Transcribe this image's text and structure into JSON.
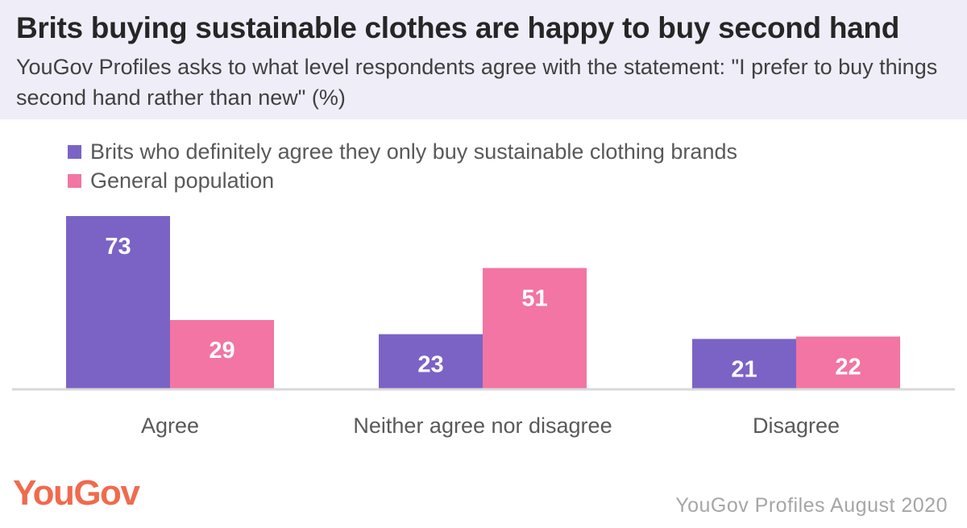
{
  "header": {
    "title": "Brits buying sustainable clothes are happy to buy second hand",
    "subtitle": "YouGov Profiles asks to what level respondents agree with the statement: \"I prefer to buy things second hand rather than new\" (%)"
  },
  "colors": {
    "header_bg": "#efedf7",
    "series_1": "#7b63c6",
    "series_2": "#f275a3",
    "logo": "#ef6b4d",
    "axis": "#d9d9d9"
  },
  "chart_data": {
    "type": "bar",
    "categories": [
      "Agree",
      "Neither agree nor disagree",
      "Disagree"
    ],
    "series": [
      {
        "name": "Brits who definitely agree they only buy sustainable clothing brands",
        "values": [
          73,
          23,
          21
        ]
      },
      {
        "name": "General population",
        "values": [
          29,
          51,
          22
        ]
      }
    ],
    "ylim": [
      0,
      73
    ],
    "grid": false,
    "legend_position": "top-left"
  },
  "footer": {
    "logo_text": "YouGov",
    "source": "YouGov Profiles August 2020"
  }
}
